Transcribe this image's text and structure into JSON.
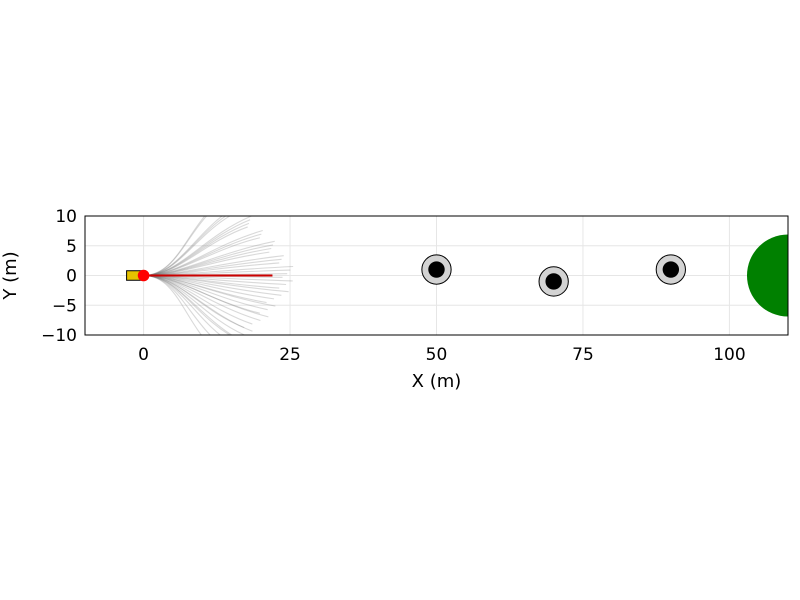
{
  "chart_data": {
    "type": "scatter",
    "title": "",
    "xlabel": "X (m)",
    "ylabel": "Y (m)",
    "xlim": [
      -10,
      110
    ],
    "ylim": [
      -10,
      10
    ],
    "xticks": [
      0,
      25,
      50,
      75,
      100
    ],
    "yticks": [
      -10,
      -5,
      0,
      5,
      10
    ],
    "xtick_labels": [
      "0",
      "25",
      "50",
      "75",
      "100"
    ],
    "ytick_labels": [
      "−10",
      "−5",
      "0",
      "5",
      "10"
    ],
    "grid": true,
    "legend": "none",
    "vehicle": {
      "x": -1.5,
      "y": 0,
      "length": 2.8,
      "width": 1.6,
      "color": "#e6c200"
    },
    "vehicle_front": {
      "x": 0,
      "y": 0,
      "radius": 0.9,
      "color": "#ff0000"
    },
    "planned_path": {
      "color": "#cc0000",
      "x": [
        0,
        22
      ],
      "y": [
        0,
        0
      ]
    },
    "candidate_paths": {
      "color": "#777777",
      "start": [
        0,
        0
      ],
      "end_x_range": [
        8,
        25
      ],
      "end_y_range": [
        -10,
        10
      ]
    },
    "obstacles": [
      {
        "x": 50,
        "y": 1,
        "inner_radius": 1.4,
        "outer_radius": 2.5,
        "inner_color": "#000000",
        "outer_color": "#d3d3d3"
      },
      {
        "x": 70,
        "y": -1,
        "inner_radius": 1.4,
        "outer_radius": 2.5,
        "inner_color": "#000000",
        "outer_color": "#d3d3d3"
      },
      {
        "x": 90,
        "y": 1,
        "inner_radius": 1.4,
        "outer_radius": 2.5,
        "inner_color": "#000000",
        "outer_color": "#d3d3d3"
      }
    ],
    "goal": {
      "x": 110,
      "y": 0,
      "radius": 7,
      "color": "#008000"
    }
  }
}
